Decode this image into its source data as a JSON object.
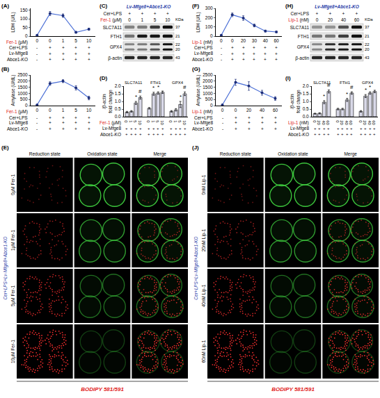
{
  "chart_data": [
    {
      "panel": "(A)",
      "type": "line",
      "y_label": "LDH (U/L)",
      "x_label": "Fer-1 (μM)",
      "categories": [
        "0",
        "0",
        "1",
        "5",
        "10"
      ],
      "values": [
        5,
        130,
        118,
        22,
        40
      ],
      "errors": [
        2,
        12,
        10,
        5,
        6
      ],
      "ylim": [
        0,
        160
      ],
      "yticks": [
        0,
        50,
        100,
        150
      ],
      "color": "#4b6fd6",
      "marker": "circle",
      "conditions": [
        {
          "label": "Cer+LPS",
          "signs": [
            "-",
            "+",
            "+",
            "+",
            "+"
          ]
        },
        {
          "label": "Lv-Mfge8",
          "signs": [
            "-",
            "+",
            "+",
            "+",
            "+"
          ]
        },
        {
          "label": "Abce1-KO",
          "signs": [
            "-",
            "+",
            "+",
            "+",
            "+"
          ]
        }
      ]
    },
    {
      "panel": "(B)",
      "type": "line",
      "y_label": "Amylase (U/dL)",
      "x_label": "Fer-1 (μM)",
      "categories": [
        "0",
        "0",
        "1",
        "5",
        "10"
      ],
      "values": [
        60,
        1800,
        2000,
        1450,
        620
      ],
      "errors": [
        20,
        150,
        120,
        180,
        150
      ],
      "ylim": [
        0,
        2500
      ],
      "yticks": [
        0,
        500,
        1000,
        1500,
        2000,
        2500
      ],
      "color": "#4b6fd6",
      "marker": "circle",
      "conditions": [
        {
          "label": "Cer+LPS",
          "signs": [
            "-",
            "+",
            "+",
            "+",
            "+"
          ]
        },
        {
          "label": "Lv-Mfge8",
          "signs": [
            "-",
            "+",
            "+",
            "+",
            "+"
          ]
        },
        {
          "label": "Abce1-KO",
          "signs": [
            "-",
            "+",
            "+",
            "+",
            "+"
          ]
        }
      ]
    },
    {
      "panel": "(D)",
      "type": "bar",
      "y_label": "/β-actin fold change",
      "x_label": "Fer-1 (μM)",
      "groups": [
        "SLC7A11",
        "FTH1",
        "GPX4"
      ],
      "categories": [
        "0",
        "1",
        "5",
        "10"
      ],
      "values": [
        [
          0.3,
          0.35,
          0.9,
          1.25
        ],
        [
          0.55,
          1.5,
          1.55,
          1.6
        ],
        [
          0.35,
          0.45,
          0.8,
          1.5
        ]
      ],
      "errors": [
        [
          0.05,
          0.05,
          0.1,
          0.1
        ],
        [
          0.05,
          0.1,
          0.08,
          0.08
        ],
        [
          0.05,
          0.08,
          0.2,
          0.12
        ]
      ],
      "significance": [
        [
          null,
          null,
          "*",
          "#"
        ],
        [
          null,
          "*",
          "*",
          null
        ],
        [
          null,
          null,
          "*",
          "#"
        ]
      ],
      "ylim": [
        0,
        2
      ],
      "yticks": [
        {
          "value": 0,
          "label": "0.0"
        },
        {
          "value": 0.5,
          "label": "0.5"
        },
        {
          "value": 1,
          "label": "1.0"
        },
        {
          "value": 1.5,
          "label": "1.5"
        },
        {
          "value": 2,
          "label": "2.0"
        }
      ],
      "color": "#d9d9e8",
      "conditions": [
        {
          "label": "Lv-Mfge8",
          "signs": [
            "+",
            "+",
            "+",
            "+"
          ]
        },
        {
          "label": "Abce1-KO",
          "signs": [
            "+",
            "+",
            "+",
            "+"
          ]
        }
      ]
    },
    {
      "panel": "(F)",
      "type": "line",
      "y_label": "LDH (U/L)",
      "x_label": "Lip-1 (nM)",
      "categories": [
        "0",
        "0",
        "20",
        "30",
        "40",
        "60"
      ],
      "values": [
        10,
        230,
        195,
        115,
        55,
        45
      ],
      "errors": [
        3,
        20,
        25,
        15,
        10,
        8
      ],
      "ylim": [
        0,
        300
      ],
      "yticks": [
        0,
        100,
        200,
        300
      ],
      "color": "#4b6fd6",
      "marker": "circle",
      "conditions": [
        {
          "label": "Cer+LPS",
          "signs": [
            "-",
            "+",
            "+",
            "+",
            "+",
            "+"
          ]
        },
        {
          "label": "Lv-Mfge8",
          "signs": [
            "-",
            "+",
            "+",
            "+",
            "+",
            "+"
          ]
        },
        {
          "label": "Abce1-KO",
          "signs": [
            "-",
            "+",
            "+",
            "+",
            "+",
            "+"
          ]
        }
      ]
    },
    {
      "panel": "(G)",
      "type": "line",
      "y_label": "Amylase (U/dL)",
      "x_label": "Lip-1 (nM)",
      "categories": [
        "0",
        "0",
        "20",
        "40",
        "60"
      ],
      "values": [
        60,
        1900,
        1600,
        1050,
        580
      ],
      "errors": [
        20,
        250,
        350,
        200,
        150
      ],
      "ylim": [
        0,
        2500
      ],
      "yticks": [
        0,
        500,
        1000,
        1500,
        2000,
        2500
      ],
      "color": "#4b6fd6",
      "marker": "circle",
      "conditions": [
        {
          "label": "Cer+LPS",
          "signs": [
            "-",
            "+",
            "+",
            "+",
            "+"
          ]
        },
        {
          "label": "Lv-Mfge8",
          "signs": [
            "-",
            "+",
            "+",
            "+",
            "+"
          ]
        },
        {
          "label": "Abce1-KO",
          "signs": [
            "-",
            "+",
            "+",
            "+",
            "+"
          ]
        }
      ]
    },
    {
      "panel": "(I)",
      "type": "bar",
      "y_label": "/β-actin fold change",
      "x_label": "Lip-1 (nM)",
      "groups": [
        "SLC7A11",
        "FTH1",
        "GPX4"
      ],
      "categories": [
        "0",
        "20",
        "40",
        "60"
      ],
      "values": [
        [
          0.2,
          0.22,
          0.95,
          1.65
        ],
        [
          0.5,
          0.5,
          1.1,
          1.55
        ],
        [
          0.35,
          1.35,
          1.55,
          1.65
        ]
      ],
      "errors": [
        [
          0.03,
          0.04,
          0.1,
          0.1
        ],
        [
          0.05,
          0.05,
          0.1,
          0.08
        ],
        [
          0.05,
          0.1,
          0.08,
          0.08
        ]
      ],
      "significance": [
        [
          null,
          null,
          "*",
          "#"
        ],
        [
          null,
          null,
          "*",
          "#"
        ],
        [
          null,
          "*",
          "*",
          null
        ]
      ],
      "ylim": [
        0,
        2
      ],
      "yticks": [
        {
          "value": 0,
          "label": "0.0"
        },
        {
          "value": 0.5,
          "label": "0.5"
        },
        {
          "value": 1,
          "label": "1.0"
        },
        {
          "value": 1.5,
          "label": "1.5"
        },
        {
          "value": 2,
          "label": "2.0"
        }
      ],
      "color": "#d9d9e8",
      "conditions": [
        {
          "label": "Lv-Mfge8",
          "signs": [
            "+",
            "+",
            "+",
            "+"
          ]
        },
        {
          "label": "Abce1-KO",
          "signs": [
            "+",
            "+",
            "+",
            "+"
          ]
        }
      ]
    }
  ],
  "blots": [
    {
      "panel": "(C)",
      "type": "blot",
      "title": "Lv-Mfge8+Abce1-KO",
      "rows": [
        {
          "label": "Cer+LPS",
          "values": [
            "+",
            "+",
            "+",
            "+"
          ]
        },
        {
          "label": "Fer-1 (μM)",
          "values": [
            "0",
            "1",
            "5",
            "10"
          ]
        }
      ],
      "unit_label": "KDa",
      "proteins": [
        {
          "name": "SLC7A11",
          "kda": [
            37
          ]
        },
        {
          "name": "FTH1",
          "kda": [
            21
          ]
        },
        {
          "name": "GPX4",
          "kda": [
            22,
            20
          ]
        },
        {
          "name": "β-actin",
          "kda": [
            43
          ]
        }
      ]
    },
    {
      "panel": "(H)",
      "type": "blot",
      "title": "Lv-Mfge8+Abce1-KO",
      "rows": [
        {
          "label": "Cer+LPS",
          "values": [
            "+",
            "+",
            "+",
            "+"
          ]
        },
        {
          "label": "Lip-1 (nM)",
          "values": [
            "0",
            "20",
            "40",
            "60"
          ]
        }
      ],
      "unit_label": "KDa",
      "proteins": [
        {
          "name": "SLC7A11",
          "kda": [
            37
          ]
        },
        {
          "name": "FTH1",
          "kda": [
            21
          ]
        },
        {
          "name": "GPX4",
          "kda": [
            22,
            20
          ]
        },
        {
          "name": "β-actin",
          "kda": [
            43
          ]
        }
      ]
    }
  ],
  "images": [
    {
      "panel": "(E)",
      "type": "image",
      "columns": [
        "Reduction state",
        "Oxidation state",
        "Merge"
      ],
      "rows": [
        "0μM Fer-1",
        "1μM Fer-1",
        "5μM Fer-1",
        "10μM Fer-1"
      ],
      "group_label": "Cer+LPS+Lv-Mfge8+Abce1-KO",
      "stain": "BODIPY 581/591"
    },
    {
      "panel": "(J)",
      "type": "image",
      "columns": [
        "Reduction state",
        "Oxidation state",
        "Merge"
      ],
      "rows": [
        "0nM Lip-1",
        "20nM Lip-1",
        "40nM Lip-1",
        "60nM Lip-1"
      ],
      "group_label": "Cer+LPS+Lv-Mfge8+Abce1-KO",
      "stain": "BODIPY 581/591"
    }
  ]
}
